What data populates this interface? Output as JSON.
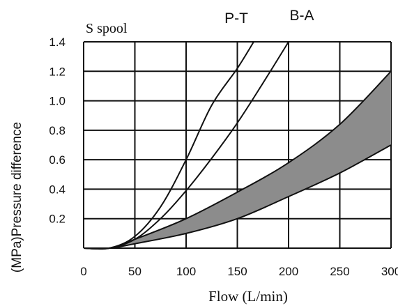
{
  "chart_data": {
    "type": "line",
    "title": "S spool",
    "xlabel": "Flow (L/min)",
    "ylabel": "(MPa)Pressure difference",
    "xlim": [
      0,
      300
    ],
    "ylim": [
      0,
      1.4
    ],
    "x_ticks": [
      "0",
      "50",
      "100",
      "150",
      "200",
      "250",
      "300"
    ],
    "y_ticks": [
      "0.2",
      "0.4",
      "0.6",
      "0.8",
      "1.0",
      "1.2",
      "1.4"
    ],
    "grid": true,
    "curve_labels": [
      "P-T",
      "B-A"
    ],
    "series": [
      {
        "name": "P-T",
        "x": [
          0,
          25,
          50,
          75,
          100,
          125,
          150,
          166
        ],
        "y": [
          0,
          0,
          0.08,
          0.28,
          0.6,
          0.97,
          1.22,
          1.4
        ]
      },
      {
        "name": "B-A",
        "x": [
          0,
          25,
          50,
          75,
          100,
          125,
          150,
          175,
          200
        ],
        "y": [
          0,
          0,
          0.06,
          0.2,
          0.39,
          0.61,
          0.85,
          1.12,
          1.4
        ]
      },
      {
        "name": "",
        "x": [
          0,
          25,
          50,
          100,
          150,
          200,
          250,
          300
        ],
        "y": [
          0,
          0,
          0.06,
          0.2,
          0.38,
          0.58,
          0.84,
          1.2
        ]
      },
      {
        "name": "",
        "x": [
          0,
          25,
          50,
          100,
          150,
          200,
          250,
          300
        ],
        "y": [
          0,
          0,
          0.03,
          0.1,
          0.2,
          0.35,
          0.51,
          0.7
        ]
      }
    ],
    "band_fill": "#8c8c8c",
    "line_color": "#111111"
  }
}
